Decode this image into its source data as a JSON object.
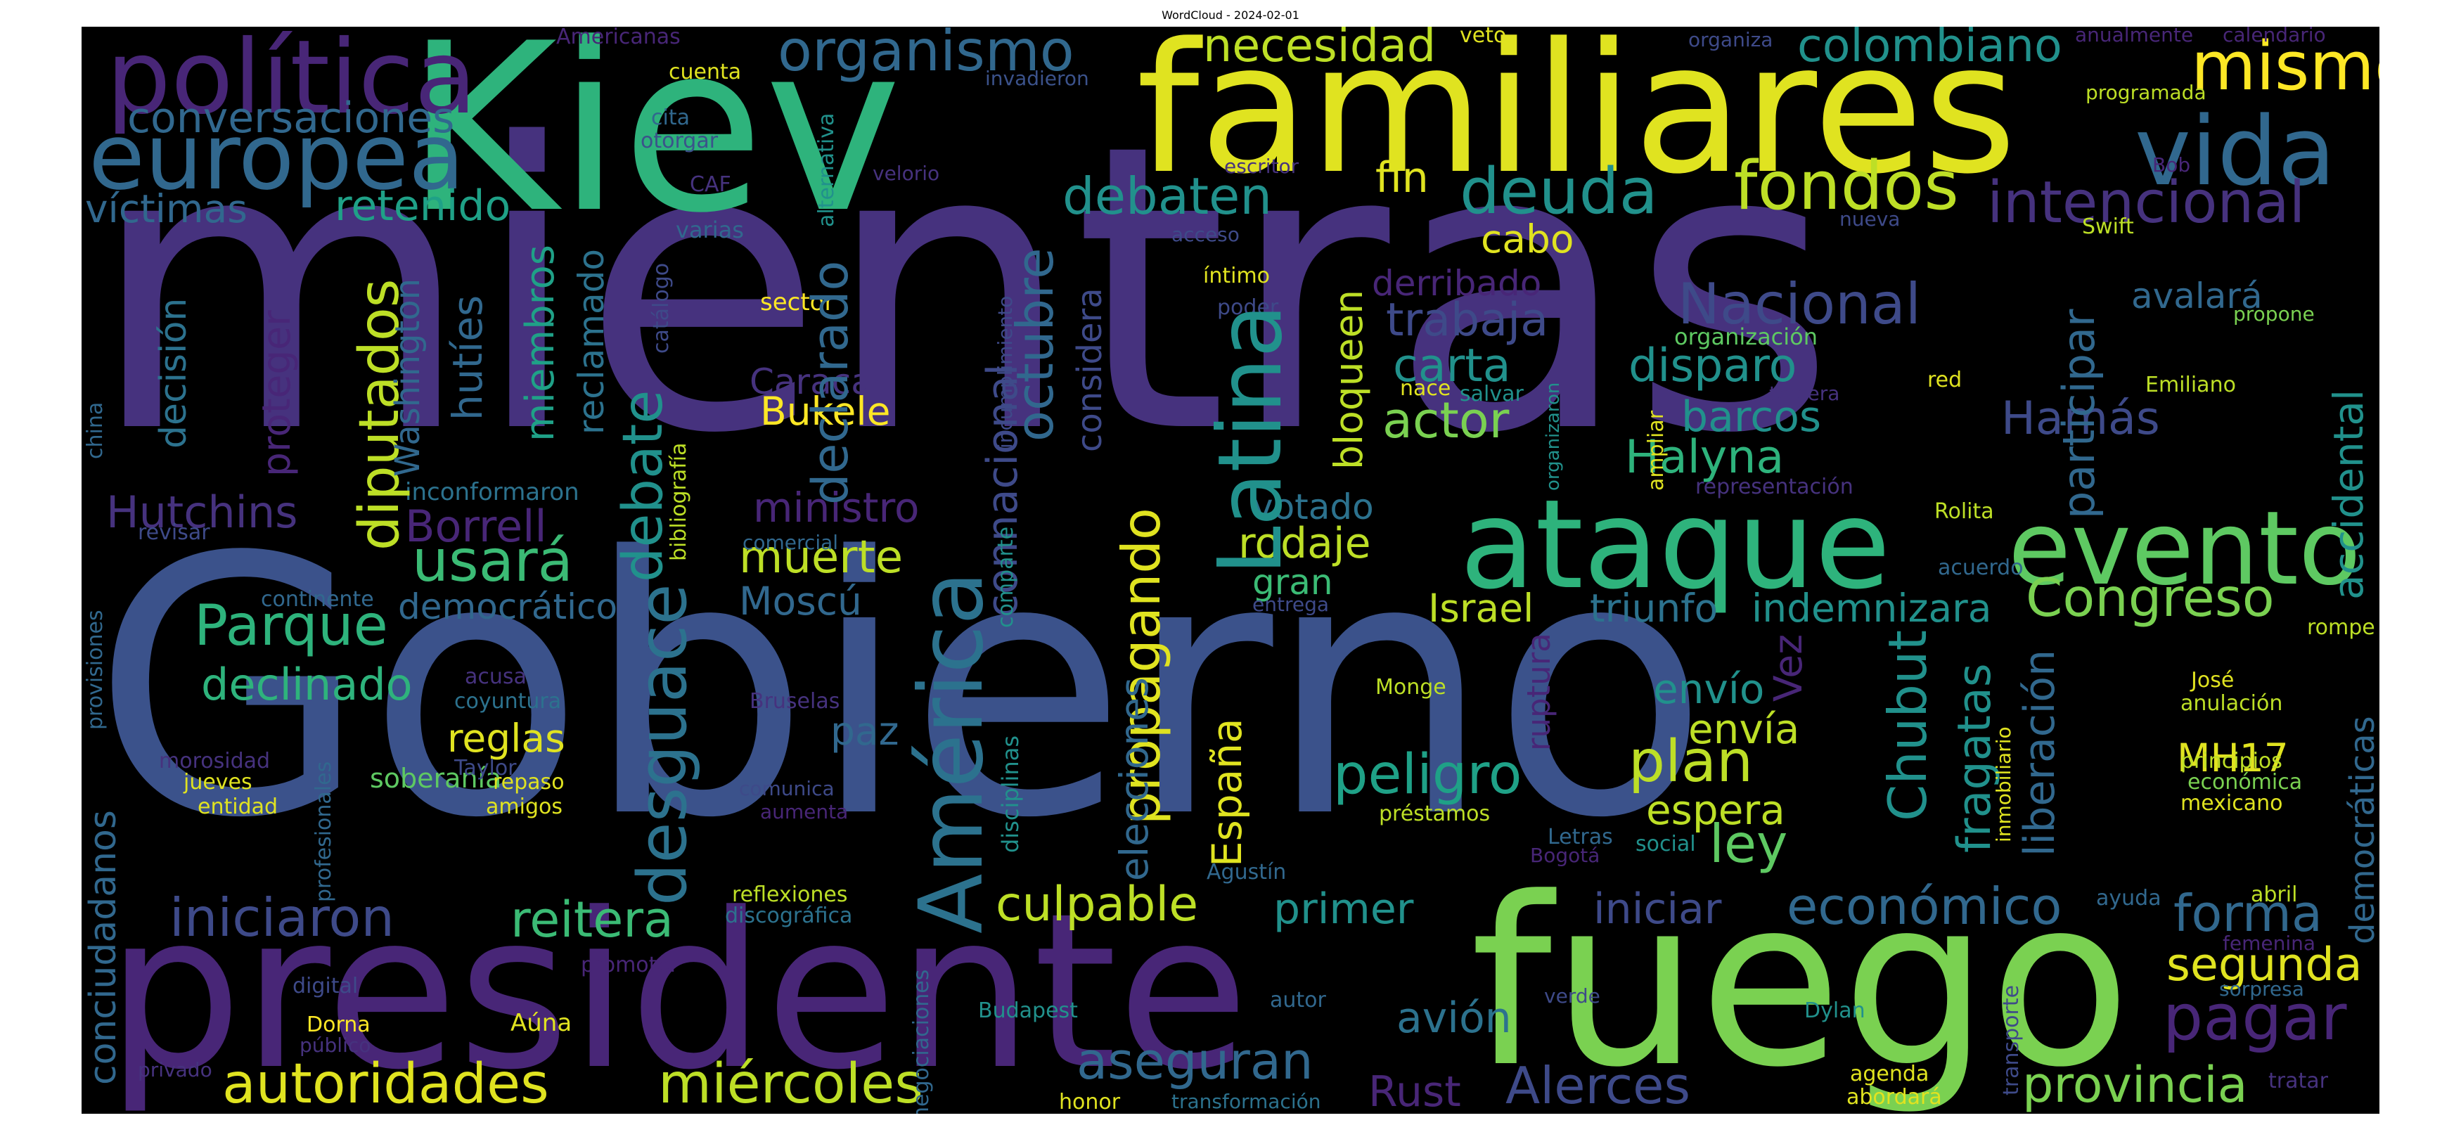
{
  "title": "WordCloud - 2024-02-01",
  "colors": {
    "background": "#000000",
    "palette": {
      "p": "#482677",
      "p2": "#46327e",
      "b": "#3e4a89",
      "b2": "#3b528b",
      "t": "#31688e",
      "t2": "#2c728e",
      "g": "#21918c",
      "g2": "#1fa187",
      "gn": "#2eb37c",
      "gn2": "#3bbb75",
      "lg": "#5ec962",
      "lg2": "#7ad151",
      "y": "#bddf26",
      "y2": "#e0e320",
      "yy": "#fde725"
    }
  },
  "words": [
    {
      "text": "mientras",
      "color": "p2"
    },
    {
      "text": "Gobierno",
      "color": "b2"
    },
    {
      "text": "presidente",
      "color": "p"
    },
    {
      "text": "Kiev",
      "color": "gn"
    },
    {
      "text": "familiares",
      "color": "y2"
    },
    {
      "text": "fuego",
      "color": "lg2"
    },
    {
      "text": "política",
      "color": "p"
    },
    {
      "text": "europea",
      "color": "t"
    },
    {
      "text": "ataque",
      "color": "gn"
    },
    {
      "text": "evento",
      "color": "lg"
    },
    {
      "text": "vida",
      "color": "t"
    },
    {
      "text": "América",
      "color": "t2"
    },
    {
      "text": "Latina",
      "color": "g"
    },
    {
      "text": "desguace",
      "color": "t2"
    },
    {
      "text": "autoridades",
      "color": "y2"
    },
    {
      "text": "miércoles",
      "color": "y"
    },
    {
      "text": "usará",
      "color": "gn2"
    },
    {
      "text": "fondos",
      "color": "y"
    },
    {
      "text": "deuda",
      "color": "g"
    },
    {
      "text": "mismo",
      "color": "yy"
    },
    {
      "text": "organismo",
      "color": "t"
    },
    {
      "text": "necesidad",
      "color": "y"
    },
    {
      "text": "colombiano",
      "color": "g"
    },
    {
      "text": "conversaciones",
      "color": "t"
    },
    {
      "text": "debaten",
      "color": "g"
    },
    {
      "text": "intencional",
      "color": "p2"
    },
    {
      "text": "retenido",
      "color": "g2"
    },
    {
      "text": "víctimas",
      "color": "t"
    },
    {
      "text": "fin",
      "color": "y2"
    },
    {
      "text": "cabo",
      "color": "y2"
    },
    {
      "text": "Nacional",
      "color": "b"
    },
    {
      "text": "derribado",
      "color": "p"
    },
    {
      "text": "trabaja",
      "color": "b"
    },
    {
      "text": "carta",
      "color": "g"
    },
    {
      "text": "disparo",
      "color": "g"
    },
    {
      "text": "actor",
      "color": "lg2"
    },
    {
      "text": "barcos",
      "color": "g"
    },
    {
      "text": "Halyna",
      "color": "gn"
    },
    {
      "text": "Hamás",
      "color": "b"
    },
    {
      "text": "avalará",
      "color": "t"
    },
    {
      "text": "Congreso",
      "color": "lg2"
    },
    {
      "text": "Israel",
      "color": "y"
    },
    {
      "text": "triunfo",
      "color": "t2"
    },
    {
      "text": "indemnizara",
      "color": "g"
    },
    {
      "text": "Parque",
      "color": "gn"
    },
    {
      "text": "declinado",
      "color": "gn"
    },
    {
      "text": "democrático",
      "color": "t"
    },
    {
      "text": "Borrell",
      "color": "p"
    },
    {
      "text": "Hutchins",
      "color": "p2"
    },
    {
      "text": "Caracas",
      "color": "p2"
    },
    {
      "text": "Bukele",
      "color": "yy"
    },
    {
      "text": "ministro",
      "color": "p"
    },
    {
      "text": "muerte",
      "color": "y"
    },
    {
      "text": "Moscú",
      "color": "t"
    },
    {
      "text": "rodaje",
      "color": "y"
    },
    {
      "text": "votado",
      "color": "t2"
    },
    {
      "text": "gran",
      "color": "gn2"
    },
    {
      "text": "peligro",
      "color": "g2"
    },
    {
      "text": "plan",
      "color": "y"
    },
    {
      "text": "envío",
      "color": "g"
    },
    {
      "text": "envía",
      "color": "y"
    },
    {
      "text": "espera",
      "color": "y"
    },
    {
      "text": "ley",
      "color": "lg"
    },
    {
      "text": "reglas",
      "color": "y2"
    },
    {
      "text": "paz",
      "color": "t"
    },
    {
      "text": "iniciaron",
      "color": "b"
    },
    {
      "text": "reitera",
      "color": "gn2"
    },
    {
      "text": "culpable",
      "color": "y"
    },
    {
      "text": "primer",
      "color": "g"
    },
    {
      "text": "iniciar",
      "color": "b"
    },
    {
      "text": "económico",
      "color": "t"
    },
    {
      "text": "forma",
      "color": "t"
    },
    {
      "text": "segunda",
      "color": "y2"
    },
    {
      "text": "pagar",
      "color": "p"
    },
    {
      "text": "provincia",
      "color": "lg2"
    },
    {
      "text": "aseguran",
      "color": "t"
    },
    {
      "text": "avión",
      "color": "t2"
    },
    {
      "text": "Rust",
      "color": "p"
    },
    {
      "text": "Alerces",
      "color": "b"
    },
    {
      "text": "MH17",
      "color": "y2"
    },
    {
      "text": "sector",
      "color": "yy"
    },
    {
      "text": "cuenta",
      "color": "y2"
    },
    {
      "text": "Americanas",
      "color": "p"
    },
    {
      "text": "invadieron",
      "color": "b2"
    },
    {
      "text": "cita",
      "color": "t"
    },
    {
      "text": "otorgar",
      "color": "b2"
    },
    {
      "text": "CAF",
      "color": "p2"
    },
    {
      "text": "varias",
      "color": "t"
    },
    {
      "text": "velorio",
      "color": "p2"
    },
    {
      "text": "escritor",
      "color": "p2"
    },
    {
      "text": "veto",
      "color": "y2"
    },
    {
      "text": "organiza",
      "color": "b"
    },
    {
      "text": "anualmente",
      "color": "p"
    },
    {
      "text": "calendario",
      "color": "p"
    },
    {
      "text": "programada",
      "color": "y"
    },
    {
      "text": "Bob",
      "color": "p"
    },
    {
      "text": "nueva",
      "color": "b"
    },
    {
      "text": "Swift",
      "color": "y"
    },
    {
      "text": "acceso",
      "color": "b"
    },
    {
      "text": "íntimo",
      "color": "y2"
    },
    {
      "text": "poder",
      "color": "b"
    },
    {
      "text": "nace",
      "color": "y2"
    },
    {
      "text": "salvar",
      "color": "g"
    },
    {
      "text": "organización",
      "color": "lg"
    },
    {
      "text": "tercera",
      "color": "p2"
    },
    {
      "text": "red",
      "color": "y2"
    },
    {
      "text": "propone",
      "color": "lg2"
    },
    {
      "text": "Emiliano",
      "color": "y"
    },
    {
      "text": "Rolita",
      "color": "y"
    },
    {
      "text": "representación",
      "color": "p2"
    },
    {
      "text": "acuerdo",
      "color": "t"
    },
    {
      "text": "entrega",
      "color": "b"
    },
    {
      "text": "rompe",
      "color": "y"
    },
    {
      "text": "José",
      "color": "y2"
    },
    {
      "text": "anulación",
      "color": "y"
    },
    {
      "text": "principios",
      "color": "y"
    },
    {
      "text": "económica",
      "color": "lg2"
    },
    {
      "text": "mexicano",
      "color": "y2"
    },
    {
      "text": "inconformaron",
      "color": "t2"
    },
    {
      "text": "revisar",
      "color": "b"
    },
    {
      "text": "comercial",
      "color": "t"
    },
    {
      "text": "continente",
      "color": "t"
    },
    {
      "text": "acusa",
      "color": "p2"
    },
    {
      "text": "coyuntura",
      "color": "t2"
    },
    {
      "text": "soberanía",
      "color": "lg"
    },
    {
      "text": "Taylor",
      "color": "b"
    },
    {
      "text": "repaso",
      "color": "y2"
    },
    {
      "text": "amigos",
      "color": "y2"
    },
    {
      "text": "comunica",
      "color": "b"
    },
    {
      "text": "aumenta",
      "color": "p"
    },
    {
      "text": "Bruselas",
      "color": "p2"
    },
    {
      "text": "Monge",
      "color": "y"
    },
    {
      "text": "préstamos",
      "color": "y"
    },
    {
      "text": "Letras",
      "color": "t"
    },
    {
      "text": "Bogotá",
      "color": "p"
    },
    {
      "text": "social",
      "color": "g"
    },
    {
      "text": "Agustín",
      "color": "t"
    },
    {
      "text": "morosidad",
      "color": "p2"
    },
    {
      "text": "jueves",
      "color": "y2"
    },
    {
      "text": "entidad",
      "color": "y2"
    },
    {
      "text": "reflexiones",
      "color": "y"
    },
    {
      "text": "discográfica",
      "color": "t2"
    },
    {
      "text": "promotor",
      "color": "p"
    },
    {
      "text": "digital",
      "color": "b"
    },
    {
      "text": "Dorna",
      "color": "yy"
    },
    {
      "text": "público",
      "color": "p2"
    },
    {
      "text": "privado",
      "color": "p2"
    },
    {
      "text": "Aúna",
      "color": "y2"
    },
    {
      "text": "Budapest",
      "color": "g"
    },
    {
      "text": "autor",
      "color": "t"
    },
    {
      "text": "verde",
      "color": "b"
    },
    {
      "text": "Dylan",
      "color": "g"
    },
    {
      "text": "agenda",
      "color": "y2"
    },
    {
      "text": "abordará",
      "color": "y2"
    },
    {
      "text": "honor",
      "color": "y2"
    },
    {
      "text": "transformación",
      "color": "t2"
    },
    {
      "text": "ayuda",
      "color": "t"
    },
    {
      "text": "abril",
      "color": "y"
    },
    {
      "text": "femenina",
      "color": "p"
    },
    {
      "text": "sorpresa",
      "color": "t"
    },
    {
      "text": "tratar",
      "color": "p2"
    },
    {
      "text": "decisión",
      "color": "t2"
    },
    {
      "text": "proteger",
      "color": "p"
    },
    {
      "text": "diputados",
      "color": "y"
    },
    {
      "text": "Washington",
      "color": "t"
    },
    {
      "text": "hutíes",
      "color": "t"
    },
    {
      "text": "miembros",
      "color": "g2"
    },
    {
      "text": "reclamado",
      "color": "t2"
    },
    {
      "text": "debate",
      "color": "g"
    },
    {
      "text": "declarado",
      "color": "t"
    },
    {
      "text": "connacional",
      "color": "b"
    },
    {
      "text": "octubre",
      "color": "t"
    },
    {
      "text": "considera",
      "color": "b"
    },
    {
      "text": "bloqueen",
      "color": "y"
    },
    {
      "text": "propagando",
      "color": "y2"
    },
    {
      "text": "España",
      "color": "y2"
    },
    {
      "text": "elecciones",
      "color": "t"
    },
    {
      "text": "Vez",
      "color": "p"
    },
    {
      "text": "ruptura",
      "color": "p"
    },
    {
      "text": "Chubut",
      "color": "g"
    },
    {
      "text": "fragatas",
      "color": "g"
    },
    {
      "text": "liberación",
      "color": "t"
    },
    {
      "text": "participar",
      "color": "t"
    },
    {
      "text": "accidental",
      "color": "g"
    },
    {
      "text": "democráticas",
      "color": "t"
    },
    {
      "text": "conciudadanos",
      "color": "t"
    },
    {
      "text": "china",
      "color": "t"
    },
    {
      "text": "provisiones",
      "color": "t"
    },
    {
      "text": "profesionales",
      "color": "t"
    },
    {
      "text": "bibliografía",
      "color": "y"
    },
    {
      "text": "catálogo",
      "color": "b"
    },
    {
      "text": "incumplimiento",
      "color": "b"
    },
    {
      "text": "alternativa",
      "color": "g"
    },
    {
      "text": "comparte",
      "color": "g"
    },
    {
      "text": "disciplinas",
      "color": "g"
    },
    {
      "text": "negociaciones",
      "color": "t"
    },
    {
      "text": "organizaron",
      "color": "g"
    },
    {
      "text": "ampliar",
      "color": "y2"
    },
    {
      "text": "inmobiliario",
      "color": "y2"
    },
    {
      "text": "transporte",
      "color": "b"
    }
  ]
}
